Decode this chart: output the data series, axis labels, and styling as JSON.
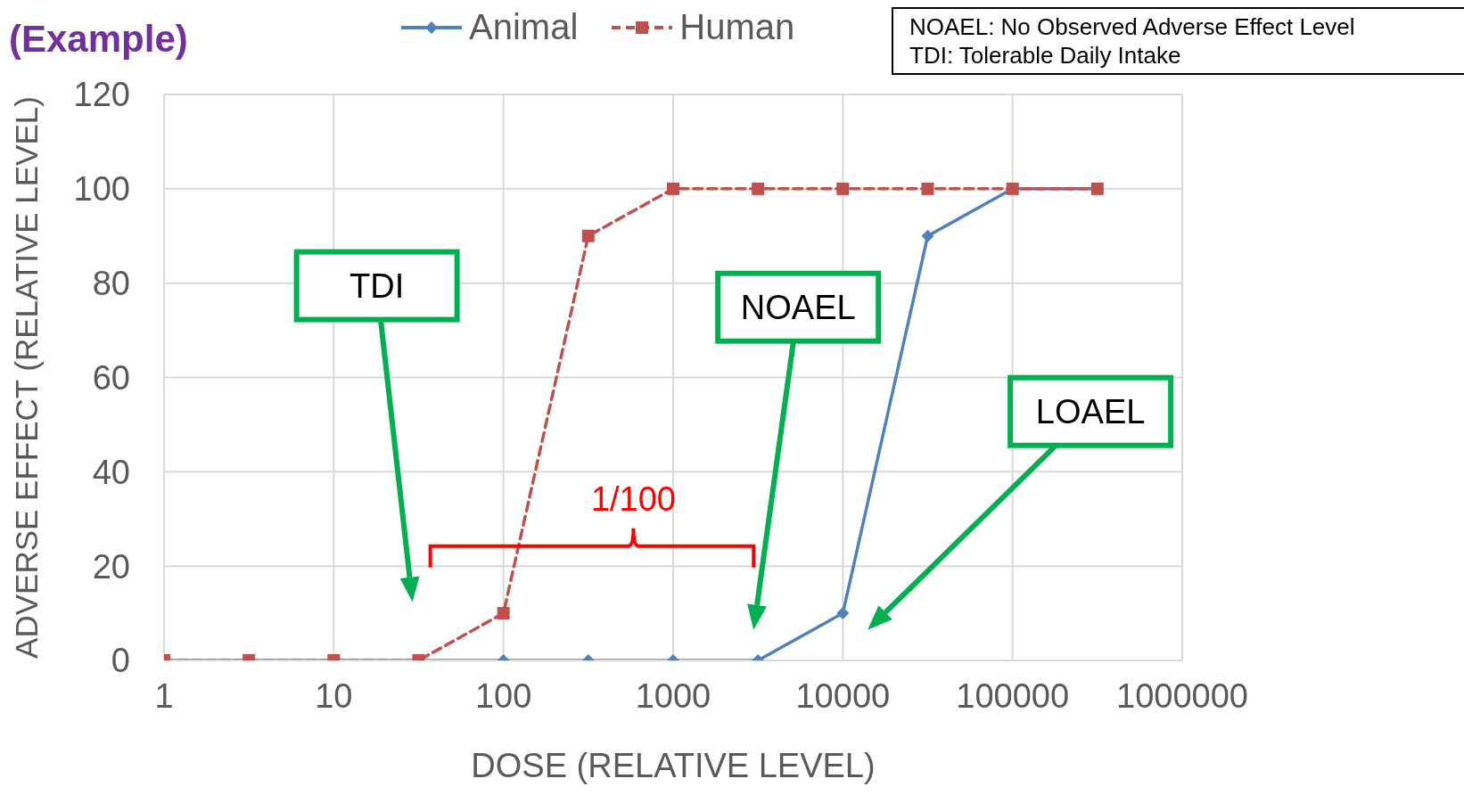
{
  "chart_data": {
    "type": "line",
    "title": "(Example)",
    "xlabel": "DOSE (RELATIVE LEVEL)",
    "ylabel": "ADVERSE EFFECT (RELATIVE LEVEL)",
    "x": [
      1,
      3.16,
      10,
      31.6,
      100,
      316,
      1000,
      3162,
      10000,
      31623,
      100000,
      316228
    ],
    "series": [
      {
        "name": "Animal",
        "color": "#4f81bd",
        "marker": "diamond",
        "line_style": "solid",
        "values": [
          0,
          0,
          0,
          0,
          0,
          0,
          0,
          0,
          10,
          90,
          100,
          100
        ]
      },
      {
        "name": "Human",
        "color": "#c0504d",
        "marker": "square",
        "line_style": "dashed",
        "values": [
          0,
          0,
          0,
          0,
          10,
          90,
          100,
          100,
          100,
          100,
          100,
          100
        ]
      }
    ],
    "log": "x",
    "xlim": [
      1,
      1000000
    ],
    "xticks": [
      1,
      10,
      100,
      1000,
      10000,
      100000,
      1000000
    ],
    "ylim": [
      0,
      120
    ],
    "yticks": [
      0,
      20,
      40,
      60,
      80,
      100,
      120
    ],
    "grid": true,
    "legend": "top",
    "annotations": [
      "TDI",
      "NOAEL",
      "LOAEL",
      "1/100",
      "NOAEL: No Observed Adverse Effect Level",
      "TDI: Tolerable Daily Intake"
    ]
  }
}
